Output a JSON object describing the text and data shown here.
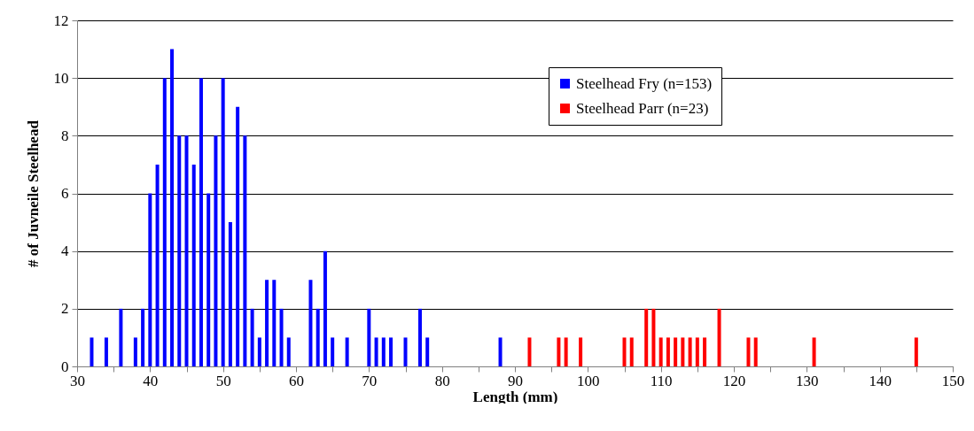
{
  "chart_data": {
    "type": "bar",
    "xlabel": "Length (mm)",
    "ylabel": "# of Juvneile Steelhead",
    "xlim": [
      30,
      150
    ],
    "xticks": [
      30,
      {
        "value": 35,
        "label": null
      },
      40,
      {
        "value": 45,
        "label": null
      },
      50,
      {
        "value": 55,
        "label": null
      },
      60,
      {
        "value": 65,
        "label": null
      },
      70,
      {
        "value": 75,
        "label": null
      },
      80,
      {
        "value": 85,
        "label": null
      },
      90,
      {
        "value": 95,
        "label": null
      },
      100,
      {
        "value": 105,
        "label": null
      },
      110,
      {
        "value": 115,
        "label": null
      },
      120,
      {
        "value": 125,
        "label": null
      },
      130,
      {
        "value": 135,
        "label": null
      },
      140,
      {
        "value": 145,
        "label": null
      },
      150
    ],
    "ylim": [
      0,
      12
    ],
    "yticks": [
      0,
      2,
      4,
      6,
      8,
      10,
      12
    ],
    "grid": "y",
    "legend": "top right",
    "series": [
      {
        "name": "Steelhead Fry (n=153)",
        "color": "#0000ff",
        "x": [
          32,
          34,
          36,
          38,
          39,
          40,
          41,
          42,
          43,
          44,
          45,
          46,
          47,
          48,
          49,
          50,
          51,
          52,
          53,
          54,
          55,
          56,
          57,
          58,
          59,
          62,
          63,
          64,
          65,
          67,
          70,
          71,
          72,
          73,
          75,
          77,
          78,
          88
        ],
        "values": [
          1,
          1,
          2,
          1,
          2,
          6,
          7,
          10,
          11,
          8,
          8,
          7,
          10,
          6,
          8,
          10,
          5,
          9,
          8,
          2,
          1,
          3,
          3,
          2,
          1,
          3,
          2,
          4,
          1,
          1,
          2,
          1,
          1,
          1,
          1,
          2,
          1,
          1
        ]
      },
      {
        "name": "Steelhead Parr (n=23)",
        "color": "#ff0000",
        "x": [
          92,
          96,
          97,
          99,
          105,
          106,
          108,
          109,
          110,
          111,
          112,
          113,
          114,
          115,
          116,
          118,
          122,
          123,
          131,
          145
        ],
        "values": [
          1,
          1,
          1,
          1,
          1,
          1,
          2,
          2,
          1,
          1,
          1,
          1,
          1,
          1,
          1,
          2,
          1,
          1,
          1,
          1
        ]
      }
    ]
  }
}
